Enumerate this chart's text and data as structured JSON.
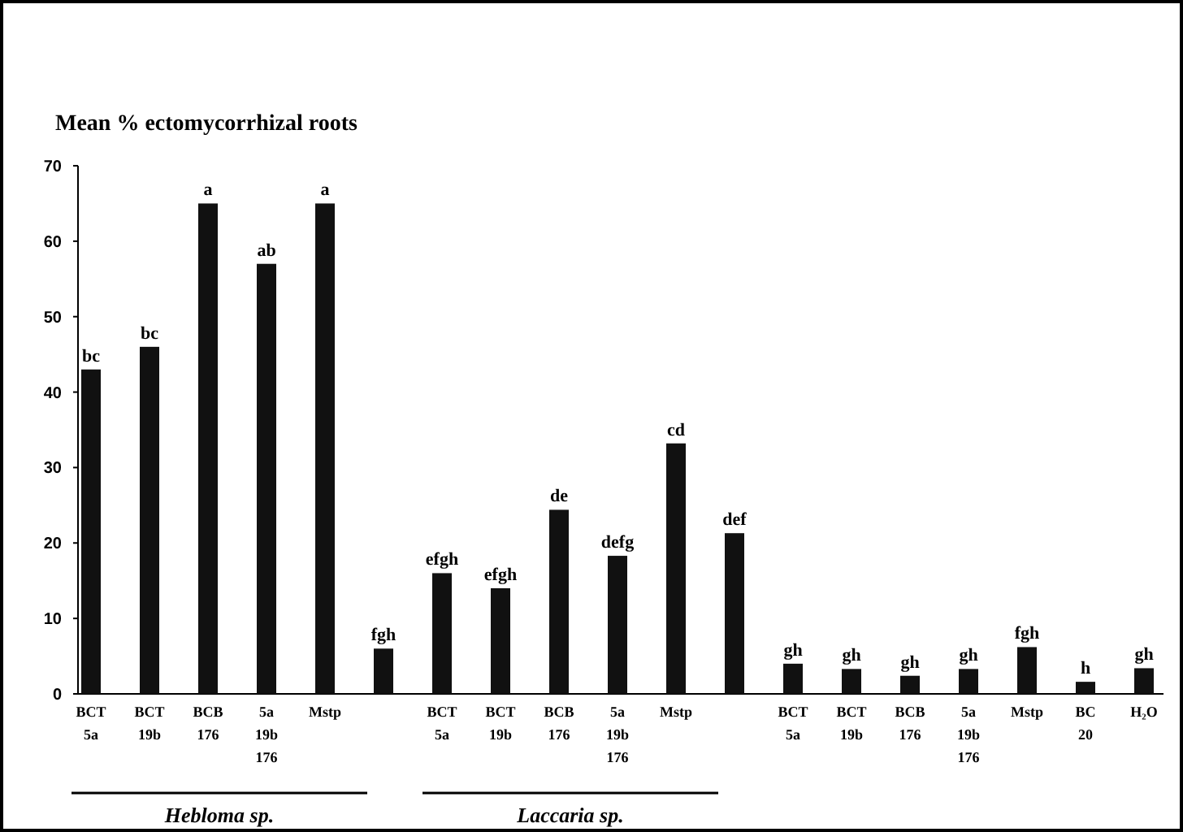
{
  "chart_data": {
    "type": "bar",
    "title": "Mean % ectomycorrhizal roots",
    "categories": [
      "BCT\n5a",
      "BCT\n19b",
      "BCB\n176",
      "5a\n19b\n176",
      "Mstp",
      null,
      "BCT\n5a",
      "BCT\n19b",
      "BCB\n176",
      "5a\n19b\n176",
      "Mstp",
      null,
      "BCT\n5a",
      "BCT\n19b",
      "BCB\n176",
      "5a\n19b\n176",
      "Mstp",
      "BC\n20",
      "H₂O"
    ],
    "values": [
      43,
      46,
      65,
      57,
      65,
      6,
      16,
      14,
      24.4,
      18.3,
      33.2,
      21.3,
      4,
      3.3,
      2.4,
      3.3,
      6.2,
      1.6,
      3.4
    ],
    "value_labels": [
      "bc",
      "bc",
      "a",
      "ab",
      "a",
      "fgh",
      "efgh",
      "efgh",
      "de",
      "defg",
      "cd",
      "def",
      "gh",
      "gh",
      "gh",
      "gh",
      "fgh",
      "h",
      "gh"
    ],
    "color": "#111111",
    "ylim": [
      0,
      70
    ],
    "yticks": [
      0,
      10,
      20,
      30,
      40,
      50,
      60,
      70
    ],
    "annotations": [
      "Hebloma sp.",
      "Laccaria sp."
    ]
  }
}
